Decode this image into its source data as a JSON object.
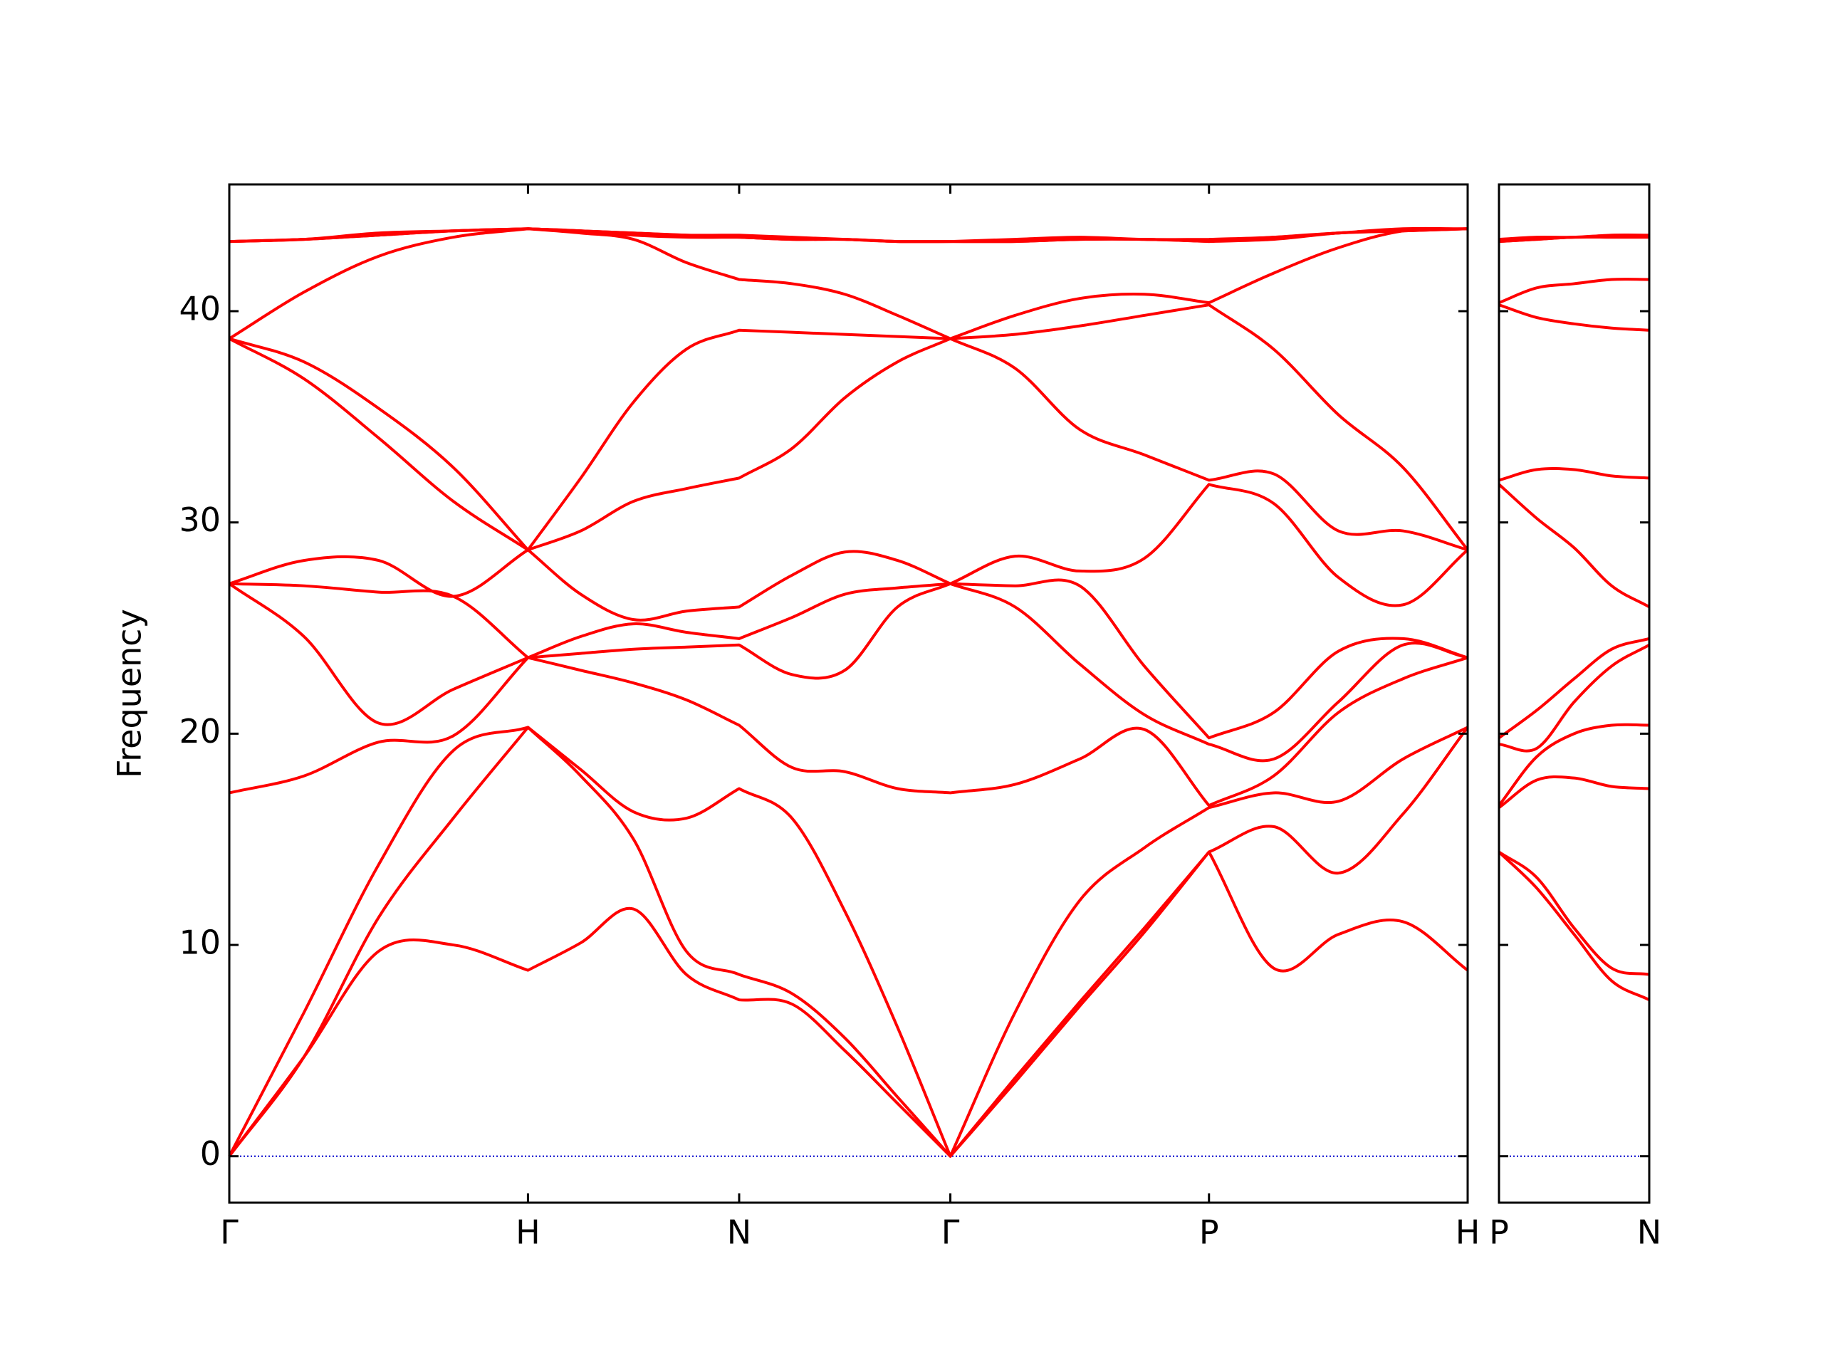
{
  "chart_data": [
    {
      "type": "line",
      "ylabel": "Frequency",
      "color": "#ff0000",
      "xlim": [
        0,
        4.1463
      ],
      "ylim": [
        -2.2,
        46
      ],
      "xticks": [
        {
          "value": 0,
          "label": "Γ"
        },
        {
          "value": 1,
          "label": "H"
        },
        {
          "value": 1.7071,
          "label": "N"
        },
        {
          "value": 2.4142,
          "label": "Γ"
        },
        {
          "value": 3.2802,
          "label": "P"
        },
        {
          "value": 4.1463,
          "label": "H"
        }
      ],
      "yticks": [
        0,
        10,
        20,
        30,
        40
      ],
      "show_ytick_labels": true,
      "hline": 0,
      "hline_color": "#0000cc",
      "x": [
        0,
        0.25,
        0.5,
        0.75,
        1,
        1.1768,
        1.3536,
        1.5303,
        1.7071,
        1.8839,
        2.0607,
        2.2374,
        2.4142,
        2.6307,
        2.8472,
        3.0637,
        3.2802,
        3.4967,
        3.7133,
        3.9298,
        4.1463
      ],
      "series": [
        {
          "values": [
            0,
            4.7,
            9.7,
            10.0,
            8.8,
            10.1,
            11.7,
            8.6,
            7.4,
            7.2,
            5.0,
            2.5,
            0,
            3.5,
            7.1,
            10.6,
            14.4,
            8.9,
            10.5,
            11.1,
            8.8
          ]
        },
        {
          "values": [
            0,
            4.7,
            11.3,
            16.0,
            20.3,
            18.0,
            15.0,
            9.7,
            8.6,
            7.7,
            5.6,
            2.8,
            0,
            3.7,
            7.3,
            10.8,
            14.4,
            15.6,
            13.4,
            16.2,
            20.3
          ]
        },
        {
          "values": [
            0,
            6.8,
            13.8,
            19.2,
            20.3,
            18.3,
            16.3,
            16.0,
            17.4,
            16.0,
            11.6,
            6.1,
            0,
            6.8,
            12.1,
            14.6,
            16.5,
            17.2,
            16.8,
            18.8,
            20.3
          ]
        },
        {
          "values": [
            17.2,
            18.0,
            19.6,
            19.9,
            23.6,
            23.0,
            22.4,
            21.6,
            20.4,
            18.4,
            18.2,
            17.4,
            17.2,
            17.6,
            18.8,
            20.2,
            16.6,
            18.0,
            21.0,
            22.6,
            23.6
          ]
        },
        {
          "values": [
            27.1,
            24.6,
            20.5,
            22.1,
            23.6,
            23.8,
            24.0,
            24.1,
            24.2,
            22.8,
            23.0,
            26.0,
            27.1,
            26.0,
            23.3,
            20.9,
            19.5,
            18.8,
            21.5,
            24.2,
            23.6
          ]
        },
        {
          "values": [
            27.1,
            27.0,
            26.7,
            26.5,
            23.6,
            24.6,
            25.2,
            24.8,
            24.5,
            25.5,
            26.6,
            26.9,
            27.1,
            27.0,
            27.0,
            23.2,
            19.8,
            21.0,
            23.9,
            24.5,
            23.6
          ]
        },
        {
          "values": [
            27.1,
            28.2,
            28.2,
            26.5,
            28.7,
            26.6,
            25.4,
            25.8,
            26.0,
            27.5,
            28.6,
            28.2,
            27.1,
            28.4,
            27.7,
            28.3,
            31.8,
            30.9,
            27.4,
            26.1,
            28.7
          ]
        },
        {
          "values": [
            38.7,
            36.8,
            34.0,
            31.0,
            28.7,
            29.6,
            31.0,
            31.6,
            32.1,
            33.5,
            35.9,
            37.6,
            38.7,
            37.3,
            34.4,
            33.2,
            32.0,
            32.3,
            29.6,
            29.6,
            28.7
          ]
        },
        {
          "values": [
            38.7,
            37.6,
            35.4,
            32.6,
            28.7,
            32.1,
            35.7,
            38.2,
            39.1,
            39.0,
            38.9,
            38.8,
            38.7,
            38.9,
            39.3,
            39.8,
            40.3,
            38.2,
            35.1,
            32.6,
            28.7
          ]
        },
        {
          "values": [
            38.7,
            40.9,
            42.6,
            43.5,
            43.9,
            43.7,
            43.4,
            42.3,
            41.5,
            41.3,
            40.8,
            39.8,
            38.7,
            39.8,
            40.6,
            40.8,
            40.4,
            41.8,
            43.0,
            43.8,
            43.9
          ]
        },
        {
          "values": [
            43.3,
            43.4,
            43.6,
            43.8,
            43.9,
            43.8,
            43.6,
            43.5,
            43.5,
            43.4,
            43.4,
            43.3,
            43.3,
            43.3,
            43.4,
            43.4,
            43.3,
            43.4,
            43.7,
            43.8,
            43.9
          ]
        },
        {
          "values": [
            43.3,
            43.4,
            43.6,
            43.8,
            43.9,
            43.8,
            43.7,
            43.6,
            43.5,
            43.4,
            43.4,
            43.3,
            43.3,
            43.3,
            43.4,
            43.4,
            43.3,
            43.5,
            43.7,
            43.8,
            43.9
          ]
        },
        {
          "values": [
            43.3,
            43.4,
            43.7,
            43.8,
            43.9,
            43.8,
            43.7,
            43.6,
            43.6,
            43.5,
            43.4,
            43.3,
            43.3,
            43.4,
            43.5,
            43.4,
            43.4,
            43.5,
            43.7,
            43.9,
            43.9
          ]
        }
      ]
    },
    {
      "type": "line",
      "color": "#ff0000",
      "xlim": [
        0,
        0.5
      ],
      "ylim": [
        -2.2,
        46
      ],
      "xticks": [
        {
          "value": 0,
          "label": "P"
        },
        {
          "value": 0.5,
          "label": "N"
        }
      ],
      "yticks": [
        0,
        10,
        20,
        30,
        40
      ],
      "show_ytick_labels": false,
      "hline": 0,
      "hline_color": "#0000cc",
      "x": [
        0,
        0.125,
        0.25,
        0.375,
        0.5
      ],
      "series": [
        {
          "values": [
            14.4,
            12.7,
            10.5,
            8.3,
            7.4
          ]
        },
        {
          "values": [
            14.4,
            13.2,
            10.8,
            8.9,
            8.6
          ]
        },
        {
          "values": [
            16.5,
            17.8,
            17.9,
            17.5,
            17.4
          ]
        },
        {
          "values": [
            16.6,
            18.9,
            20.0,
            20.4,
            20.4
          ]
        },
        {
          "values": [
            19.5,
            19.3,
            21.5,
            23.2,
            24.2
          ]
        },
        {
          "values": [
            19.8,
            21.1,
            22.6,
            24.0,
            24.5
          ]
        },
        {
          "values": [
            31.8,
            30.2,
            28.8,
            27.0,
            26.0
          ]
        },
        {
          "values": [
            32.0,
            32.5,
            32.5,
            32.2,
            32.1
          ]
        },
        {
          "values": [
            40.3,
            39.7,
            39.4,
            39.2,
            39.1
          ]
        },
        {
          "values": [
            40.4,
            41.1,
            41.3,
            41.5,
            41.5
          ]
        },
        {
          "values": [
            43.3,
            43.4,
            43.5,
            43.5,
            43.5
          ]
        },
        {
          "values": [
            43.3,
            43.4,
            43.5,
            43.5,
            43.5
          ]
        },
        {
          "values": [
            43.4,
            43.5,
            43.5,
            43.6,
            43.6
          ]
        }
      ]
    }
  ]
}
